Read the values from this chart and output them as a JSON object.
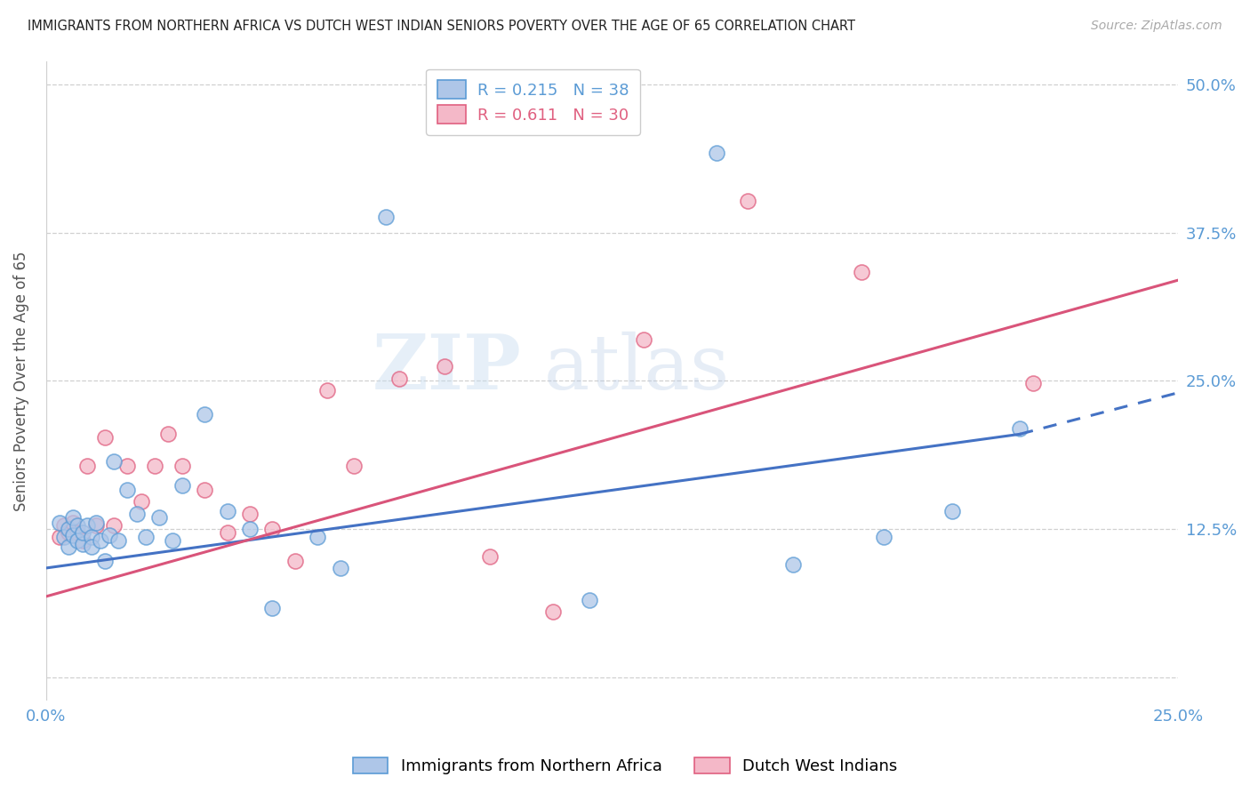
{
  "title": "IMMIGRANTS FROM NORTHERN AFRICA VS DUTCH WEST INDIAN SENIORS POVERTY OVER THE AGE OF 65 CORRELATION CHART",
  "source": "Source: ZipAtlas.com",
  "ylabel": "Seniors Poverty Over the Age of 65",
  "ytick_values": [
    0.0,
    0.125,
    0.25,
    0.375,
    0.5
  ],
  "ytick_labels": [
    "",
    "12.5%",
    "25.0%",
    "37.5%",
    "50.0%"
  ],
  "xtick_values": [
    0.0,
    0.25
  ],
  "xtick_labels": [
    "0.0%",
    "25.0%"
  ],
  "xlim": [
    0,
    0.25
  ],
  "ylim": [
    -0.02,
    0.52
  ],
  "legend_blue_R": "0.215",
  "legend_blue_N": "38",
  "legend_pink_R": "0.611",
  "legend_pink_N": "30",
  "blue_face_color": "#aec6e8",
  "blue_edge_color": "#5b9bd5",
  "pink_face_color": "#f4b8c8",
  "pink_edge_color": "#e06080",
  "blue_line_color": "#4472c4",
  "pink_line_color": "#d9547a",
  "axis_color": "#5b9bd5",
  "grid_color": "#d0d0d0",
  "watermark_color": "#ddeeff",
  "watermark_text": "ZIPatlas",
  "blue_scatter_x": [
    0.003,
    0.004,
    0.005,
    0.005,
    0.006,
    0.006,
    0.007,
    0.007,
    0.008,
    0.008,
    0.009,
    0.01,
    0.01,
    0.011,
    0.012,
    0.013,
    0.014,
    0.015,
    0.016,
    0.018,
    0.02,
    0.022,
    0.025,
    0.028,
    0.03,
    0.035,
    0.04,
    0.045,
    0.05,
    0.06,
    0.065,
    0.075,
    0.12,
    0.148,
    0.165,
    0.185,
    0.2,
    0.215
  ],
  "blue_scatter_y": [
    0.13,
    0.118,
    0.125,
    0.11,
    0.12,
    0.135,
    0.115,
    0.128,
    0.112,
    0.122,
    0.128,
    0.118,
    0.11,
    0.13,
    0.115,
    0.098,
    0.12,
    0.182,
    0.115,
    0.158,
    0.138,
    0.118,
    0.135,
    0.115,
    0.162,
    0.222,
    0.14,
    0.125,
    0.058,
    0.118,
    0.092,
    0.388,
    0.065,
    0.442,
    0.095,
    0.118,
    0.14,
    0.21
  ],
  "pink_scatter_x": [
    0.003,
    0.004,
    0.005,
    0.006,
    0.007,
    0.008,
    0.009,
    0.011,
    0.013,
    0.015,
    0.018,
    0.021,
    0.024,
    0.027,
    0.03,
    0.035,
    0.04,
    0.045,
    0.05,
    0.055,
    0.062,
    0.068,
    0.078,
    0.088,
    0.098,
    0.112,
    0.132,
    0.155,
    0.18,
    0.218
  ],
  "pink_scatter_y": [
    0.118,
    0.128,
    0.122,
    0.13,
    0.122,
    0.115,
    0.178,
    0.128,
    0.202,
    0.128,
    0.178,
    0.148,
    0.178,
    0.205,
    0.178,
    0.158,
    0.122,
    0.138,
    0.125,
    0.098,
    0.242,
    0.178,
    0.252,
    0.262,
    0.102,
    0.055,
    0.285,
    0.402,
    0.342,
    0.248
  ],
  "blue_trend_x0": 0.0,
  "blue_trend_y0": 0.092,
  "blue_trend_x1": 0.215,
  "blue_trend_y1": 0.205,
  "blue_trend_x2": 0.25,
  "blue_trend_y2": 0.24,
  "pink_trend_x0": 0.0,
  "pink_trend_y0": 0.068,
  "pink_trend_x1": 0.25,
  "pink_trend_y1": 0.335
}
